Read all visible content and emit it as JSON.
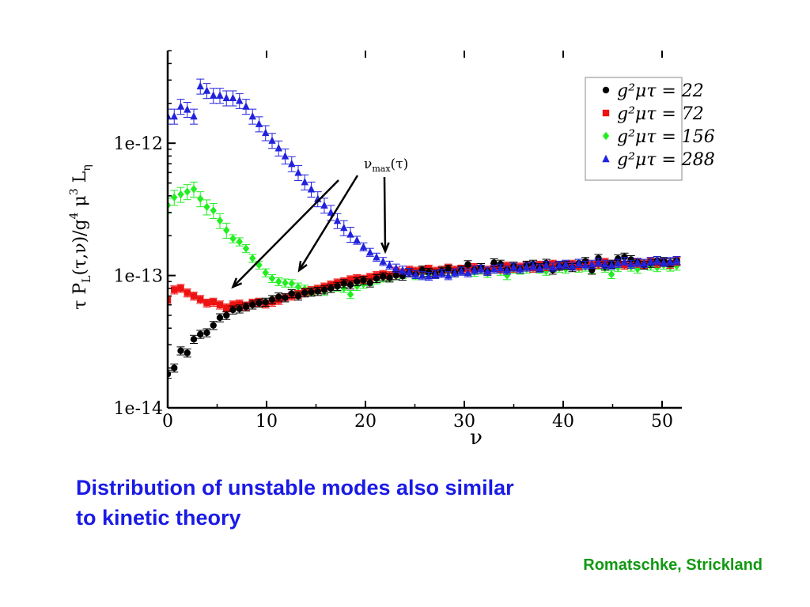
{
  "chart_data": {
    "type": "scatter",
    "title": "",
    "xlabel": "ν",
    "ylabel": "τ P_L(τ,ν)/g^4 μ^3 L_η",
    "xlim": [
      0,
      52
    ],
    "ylim": [
      1e-14,
      5e-12
    ],
    "ylog": true,
    "x_ticks": [
      "0",
      "10",
      "20",
      "30",
      "40",
      "50"
    ],
    "y_ticks": [
      "1e-14",
      "1e-13",
      "1e-12"
    ],
    "legend_position": "top-right",
    "annotation": "ν_max(τ)",
    "annotation_arrow_targets_x": [
      6.6,
      13.3,
      22.0
    ],
    "series": [
      {
        "name": "g²μτ = 22",
        "color": "#000000",
        "marker": "circle",
        "x": [
          0,
          0.66,
          1.32,
          1.98,
          2.64,
          3.3,
          3.96,
          4.62,
          5.28,
          5.94,
          6.6,
          7.26,
          7.92,
          8.58,
          9.24,
          9.9,
          10.56,
          11.22,
          11.88,
          12.54,
          13.2,
          13.86,
          14.52,
          15.18,
          15.84,
          16.5,
          17.16,
          17.82,
          18.48,
          19.14,
          19.8,
          20.46,
          21.12,
          21.78,
          22.44,
          23.1,
          23.76,
          24.42,
          25.08,
          25.74,
          26.4,
          27.06,
          27.72,
          28.38,
          29.04,
          29.7,
          30.36,
          31.02,
          31.68,
          32.34,
          33.0,
          33.66,
          34.32,
          34.98,
          35.64,
          36.3,
          36.96,
          37.62,
          38.28,
          38.94,
          39.6,
          40.26,
          40.92,
          41.58,
          42.24,
          42.9,
          43.56,
          44.22,
          44.88,
          45.54,
          46.2,
          46.86,
          47.52,
          48.18,
          48.84,
          49.5,
          50.16,
          50.82,
          51.48
        ],
        "y": [
          1.8e-14,
          2e-14,
          2.7e-14,
          2.6e-14,
          3.3e-14,
          3.6e-14,
          3.7e-14,
          4.2e-14,
          4.8e-14,
          5e-14,
          5.5e-14,
          5.6e-14,
          5.8e-14,
          6e-14,
          6.2e-14,
          6.3e-14,
          6.6e-14,
          6.9e-14,
          6.8e-14,
          7.3e-14,
          7e-14,
          7.4e-14,
          7.5e-14,
          7.6e-14,
          7.8e-14,
          8e-14,
          8.3e-14,
          8.7e-14,
          8.5e-14,
          9e-14,
          9.2e-14,
          8.8e-14,
          9.5e-14,
          9.8e-14,
          9.6e-14,
          1e-13,
          9.9e-14,
          1.05e-13,
          1.02e-13,
          1.1e-13,
          1.06e-13,
          1.03e-13,
          1.08e-13,
          1.12e-13,
          1.05e-13,
          1.1e-13,
          1.21e-13,
          1.1e-13,
          1.15e-13,
          1.08e-13,
          1.25e-13,
          1.22e-13,
          1.1e-13,
          1.18e-13,
          1.12e-13,
          1.2e-13,
          1.22e-13,
          1.15e-13,
          1.24e-13,
          1.1e-13,
          1.18e-13,
          1.2e-13,
          1.15e-13,
          1.24e-13,
          1.28e-13,
          1.1e-13,
          1.35e-13,
          1.18e-13,
          1.22e-13,
          1.34e-13,
          1.38e-13,
          1.32e-13,
          1.26e-13,
          1.2e-13,
          1.24e-13,
          1.3e-13,
          1.28e-13,
          1.25e-13,
          1.3e-13
        ]
      },
      {
        "name": "g²μτ = 72",
        "color": "#ee1111",
        "marker": "square",
        "x": [
          0,
          0.66,
          1.32,
          1.98,
          2.64,
          3.3,
          3.96,
          4.62,
          5.28,
          5.94,
          6.6,
          7.26,
          7.92,
          8.58,
          9.24,
          9.9,
          10.56,
          11.22,
          11.88,
          12.54,
          13.2,
          13.86,
          14.52,
          15.18,
          15.84,
          16.5,
          17.16,
          17.82,
          18.48,
          19.14,
          19.8,
          20.46,
          21.12,
          21.78,
          22.44,
          23.1,
          23.76,
          24.42,
          25.08,
          25.74,
          26.4,
          27.06,
          27.72,
          28.38,
          29.04,
          29.7,
          30.36,
          31.02,
          31.68,
          32.34,
          33.0,
          33.66,
          34.32,
          34.98,
          35.64,
          36.3,
          36.96,
          37.62,
          38.28,
          38.94,
          39.6,
          40.26,
          40.92,
          41.58,
          42.24,
          42.9,
          43.56,
          44.22,
          44.88,
          45.54,
          46.2,
          46.86,
          47.52,
          48.18,
          48.84,
          49.5,
          50.16,
          50.82,
          51.48
        ],
        "y": [
          6.5e-14,
          7.8e-14,
          8e-14,
          7.4e-14,
          7e-14,
          6.6e-14,
          6.2e-14,
          6.3e-14,
          6e-14,
          5.7e-14,
          6e-14,
          6.1e-14,
          5.9e-14,
          6.2e-14,
          6.3e-14,
          6.1e-14,
          6.3e-14,
          6.5e-14,
          6.8e-14,
          7e-14,
          7.2e-14,
          7.5e-14,
          7.7e-14,
          7.9e-14,
          8.2e-14,
          8.5e-14,
          8.8e-14,
          9e-14,
          9.3e-14,
          9.5e-14,
          9.4e-14,
          9.7e-14,
          1e-13,
          1.02e-13,
          1e-13,
          1.08e-13,
          1.05e-13,
          1.1e-13,
          1.08e-13,
          1.1e-13,
          1.12e-13,
          1.08e-13,
          1.1e-13,
          1.14e-13,
          1.1e-13,
          1.12e-13,
          1.12e-13,
          1.15e-13,
          1.12e-13,
          1.1e-13,
          1.15e-13,
          1.12e-13,
          1.18e-13,
          1.14e-13,
          1.16e-13,
          1.18e-13,
          1.14e-13,
          1.2e-13,
          1.17e-13,
          1.22e-13,
          1.18e-13,
          1.2e-13,
          1.22e-13,
          1.18e-13,
          1.24e-13,
          1.2e-13,
          1.22e-13,
          1.26e-13,
          1.22e-13,
          1.24e-13,
          1.2e-13,
          1.26e-13,
          1.24e-13,
          1.22e-13,
          1.28e-13,
          1.24e-13,
          1.26e-13,
          1.22e-13,
          1.28e-13
        ]
      },
      {
        "name": "g²μτ = 156",
        "color": "#22ee22",
        "marker": "diamond",
        "x": [
          0,
          0.66,
          1.32,
          1.98,
          2.64,
          3.3,
          3.96,
          4.62,
          5.28,
          5.94,
          6.6,
          7.26,
          7.92,
          8.58,
          9.24,
          9.9,
          10.56,
          11.22,
          11.88,
          12.54,
          13.2,
          13.86,
          14.52,
          15.18,
          15.84,
          16.5,
          17.16,
          17.82,
          18.48,
          19.14,
          19.8,
          20.46,
          21.12,
          21.78,
          22.44,
          23.1,
          23.76,
          24.42,
          25.08,
          25.74,
          26.4,
          27.06,
          27.72,
          28.38,
          29.04,
          29.7,
          30.36,
          31.02,
          31.68,
          32.34,
          33.0,
          33.66,
          34.32,
          34.98,
          35.64,
          36.3,
          36.96,
          37.62,
          38.28,
          38.94,
          39.6,
          40.26,
          40.92,
          41.58,
          42.24,
          42.9,
          43.56,
          44.22,
          44.88,
          45.54,
          46.2,
          46.86,
          47.52,
          48.18,
          48.84,
          49.5,
          50.16,
          50.82,
          51.48
        ],
        "y": [
          3.4e-13,
          3.9e-13,
          4.1e-13,
          4.3e-13,
          4.5e-13,
          3.8e-13,
          3.3e-13,
          3.1e-13,
          2.6e-13,
          2.2e-13,
          1.9e-13,
          1.8e-13,
          1.6e-13,
          1.35e-13,
          1.2e-13,
          1.05e-13,
          9.5e-14,
          9e-14,
          8.8e-14,
          8.7e-14,
          8.2e-14,
          7.9e-14,
          7.6e-14,
          7.8e-14,
          7.6e-14,
          8e-14,
          8.2e-14,
          8e-14,
          7.2e-14,
          8.3e-14,
          8.6e-14,
          9e-14,
          9.3e-14,
          9.6e-14,
          9.8e-14,
          1e-13,
          1.02e-13,
          1.05e-13,
          1e-13,
          1.04e-13,
          1.02e-13,
          1.06e-13,
          1.04e-13,
          1.08e-13,
          1.05e-13,
          1.1e-13,
          1.08e-13,
          1.06e-13,
          1.1e-13,
          1.04e-13,
          1.12e-13,
          1.08e-13,
          1e-13,
          1.12e-13,
          1.1e-13,
          1.12e-13,
          1.14e-13,
          1.12e-13,
          1.08e-13,
          1.16e-13,
          1.14e-13,
          1.12e-13,
          1.18e-13,
          1.14e-13,
          1.16e-13,
          1.12e-13,
          1.2e-13,
          1.14e-13,
          1.02e-13,
          1.15e-13,
          1.2e-13,
          1.16e-13,
          1.12e-13,
          1.22e-13,
          1.18e-13,
          1.15e-13,
          1.2e-13,
          1.16e-13,
          1.18e-13
        ]
      },
      {
        "name": "g²μτ = 288",
        "color": "#2222dd",
        "marker": "triangle",
        "x": [
          0,
          0.66,
          1.32,
          1.98,
          2.64,
          3.3,
          3.96,
          4.62,
          5.28,
          5.94,
          6.6,
          7.26,
          7.92,
          8.58,
          9.24,
          9.9,
          10.56,
          11.22,
          11.88,
          12.54,
          13.2,
          13.86,
          14.52,
          15.18,
          15.84,
          16.5,
          17.16,
          17.82,
          18.48,
          19.14,
          19.8,
          20.46,
          21.12,
          21.78,
          22.44,
          23.1,
          23.76,
          24.42,
          25.08,
          25.74,
          26.4,
          27.06,
          27.72,
          28.38,
          29.04,
          29.7,
          30.36,
          31.02,
          31.68,
          32.34,
          33.0,
          33.66,
          34.32,
          34.98,
          35.64,
          36.3,
          36.96,
          37.62,
          38.28,
          38.94,
          39.6,
          40.26,
          40.92,
          41.58,
          42.24,
          42.9,
          43.56,
          44.22,
          44.88,
          45.54,
          46.2,
          46.86,
          47.52,
          48.18,
          48.84,
          49.5,
          50.16,
          50.82,
          51.48
        ],
        "y": [
          1.6e-12,
          1.6e-12,
          1.9e-12,
          1.8e-12,
          1.6e-12,
          2.7e-12,
          2.5e-12,
          2.3e-12,
          2.3e-12,
          2.2e-12,
          2.2e-12,
          2.1e-12,
          1.9e-12,
          1.6e-12,
          1.4e-12,
          1.2e-12,
          1.05e-12,
          9.2e-13,
          8e-13,
          7e-13,
          6e-13,
          5.1e-13,
          4.5e-13,
          3.8e-13,
          3.4e-13,
          3e-13,
          2.6e-13,
          2.3e-13,
          2.05e-13,
          1.85e-13,
          1.65e-13,
          1.5e-13,
          1.38e-13,
          1.28e-13,
          1.2e-13,
          1.14e-13,
          1.1e-13,
          1.06e-13,
          1.02e-13,
          1e-13,
          9.9e-14,
          1.02e-13,
          1.04e-13,
          1e-13,
          1.05e-13,
          1.08e-13,
          1.05e-13,
          1.1e-13,
          1.12e-13,
          1.08e-13,
          1.12e-13,
          1.14e-13,
          1.1e-13,
          1.16e-13,
          1.12e-13,
          1.16e-13,
          1.18e-13,
          1.14e-13,
          1.2e-13,
          1.16e-13,
          1.2e-13,
          1.22e-13,
          1.18e-13,
          1.24e-13,
          1.2e-13,
          1.22e-13,
          1.26e-13,
          1.22e-13,
          1.2e-13,
          1.24e-13,
          1.28e-13,
          1.22e-13,
          1.26e-13,
          1.24e-13,
          1.28e-13,
          1.3e-13,
          1.26e-13,
          1.28e-13,
          1.3e-13
        ]
      }
    ]
  },
  "caption": {
    "line1": "Distribution of unstable modes also similar",
    "line2": "to kinetic theory"
  },
  "credit": "Romatschke, Strickland"
}
